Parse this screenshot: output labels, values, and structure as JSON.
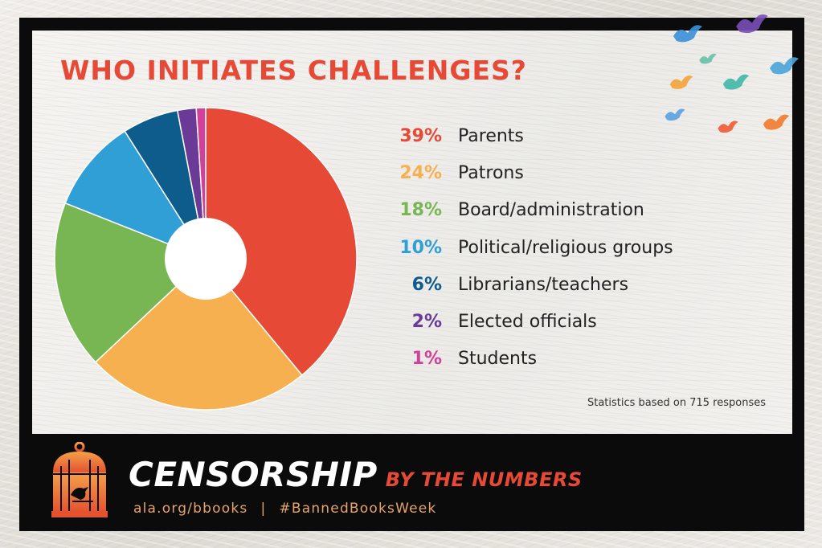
{
  "chart_data": {
    "type": "pie",
    "title": "WHO INITIATES CHALLENGES?",
    "slices": [
      {
        "label": "Parents",
        "percent_label": "39%",
        "value": 39,
        "color": "#e64a36"
      },
      {
        "label": "Patrons",
        "percent_label": "24%",
        "value": 24,
        "color": "#f7b04f"
      },
      {
        "label": "Board/administration",
        "percent_label": "18%",
        "value": 18,
        "color": "#78b653"
      },
      {
        "label": "Political/religious groups",
        "percent_label": "10%",
        "value": 10,
        "color": "#2f9fd6"
      },
      {
        "label": "Librarians/teachers",
        "percent_label": "6%",
        "value": 6,
        "color": "#0e5c8c"
      },
      {
        "label": "Elected officials",
        "percent_label": "2%",
        "value": 2,
        "color": "#6b3a97"
      },
      {
        "label": "Students",
        "percent_label": "1%",
        "value": 1,
        "color": "#d2409a"
      }
    ],
    "start": "12 o'clock",
    "direction": "clockwise",
    "legend_placement": "right",
    "note": "Statistics based on 715 responses"
  },
  "footer": {
    "title": "CENSORSHIP",
    "subtitle": "BY THE NUMBERS",
    "link1": "ala.org/bbooks",
    "separator": "|",
    "link2": "#BannedBooksWeek"
  },
  "decor": {
    "cage_icon": "birdcage-icon",
    "birds_icon": "flying-birds-icon",
    "bird_colors": [
      "#3a8fd8",
      "#7a4fb8",
      "#4aa3d8",
      "#f2a33a",
      "#3fb8a6",
      "#5aa0e0",
      "#f27a2e",
      "#ef5a34",
      "#66c0a8"
    ]
  }
}
